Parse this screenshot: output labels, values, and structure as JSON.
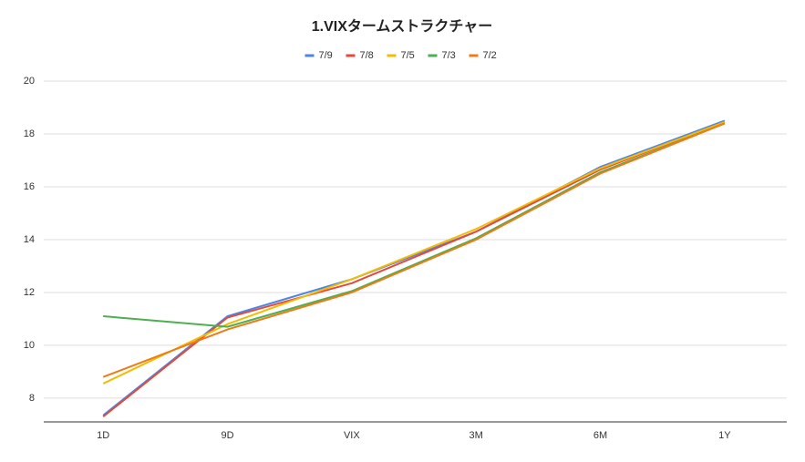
{
  "chart_data": {
    "type": "line",
    "title": "1.VIXタームストラクチャー",
    "categories": [
      "1D",
      "9D",
      "VIX",
      "3M",
      "6M",
      "1Y"
    ],
    "series": [
      {
        "name": "7/9",
        "color": "#4a86e8",
        "values": [
          7.35,
          11.1,
          12.5,
          14.3,
          16.75,
          18.5
        ]
      },
      {
        "name": "7/8",
        "color": "#e5493a",
        "values": [
          7.3,
          11.05,
          12.35,
          14.3,
          16.65,
          18.45
        ]
      },
      {
        "name": "7/5",
        "color": "#f4bb00",
        "values": [
          8.55,
          10.8,
          12.5,
          14.4,
          16.7,
          18.45
        ]
      },
      {
        "name": "7/3",
        "color": "#4caf50",
        "values": [
          11.1,
          10.7,
          12.05,
          14.05,
          16.55,
          18.4
        ]
      },
      {
        "name": "7/2",
        "color": "#f07b16",
        "values": [
          8.8,
          10.6,
          12.0,
          14.0,
          16.5,
          18.4
        ]
      }
    ],
    "ylim": [
      7.1,
      20
    ],
    "yticks": [
      8,
      10,
      12,
      14,
      16,
      18,
      20
    ],
    "grid": true,
    "legend": "top"
  }
}
